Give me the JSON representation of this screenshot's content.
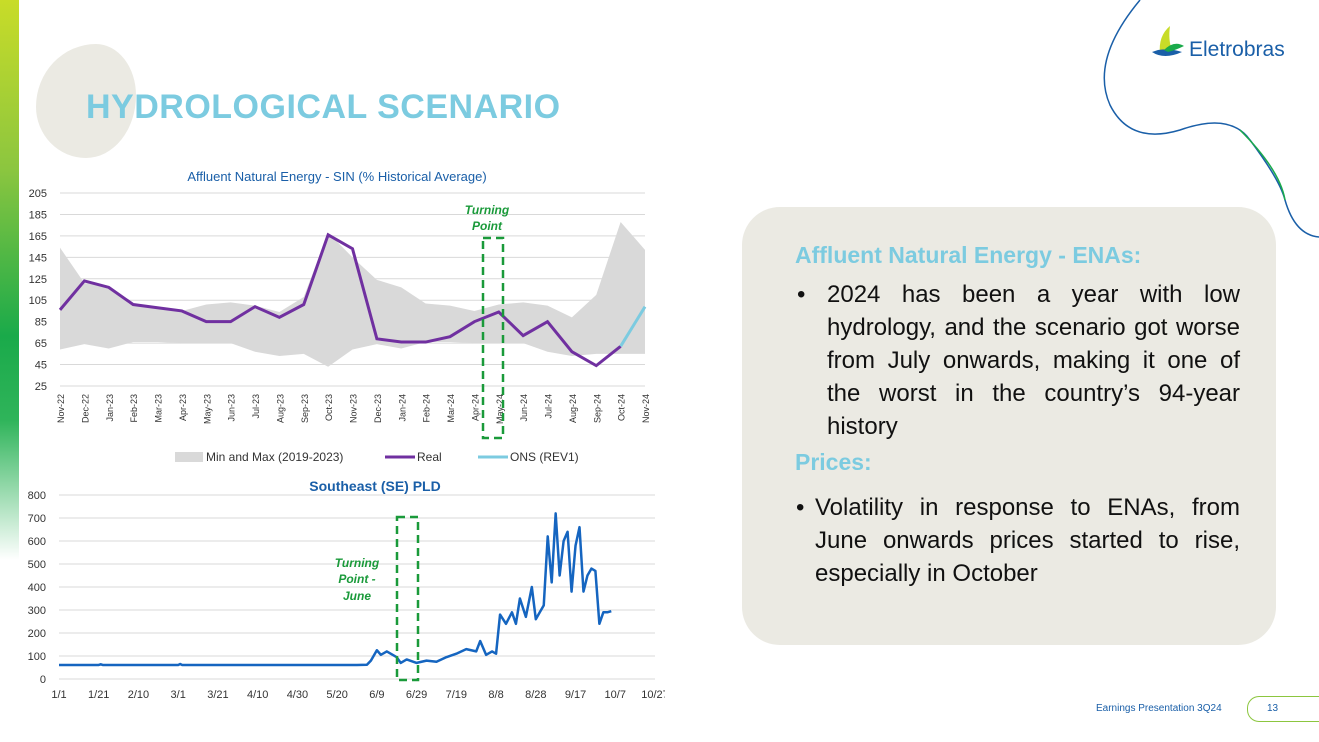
{
  "slide": {
    "title": "HYDROLOGICAL SCENARIO",
    "logo_text": "Eletrobras",
    "footer": "Earnings Presentation 3Q24",
    "page_number": "13",
    "colors": {
      "accent": "#7ccbe0",
      "brand_blue": "#1a5fa8",
      "green": "#8cc63f",
      "panel": "#ebeae3"
    }
  },
  "panel": {
    "heading_ena_a": "Affluent Natural Energy - ",
    "heading_ena_b": "ENAs:",
    "bullet_1": "2024 has been a year with low hydrology, and the scenario got worse from July onwards, making it one of the worst in the country’s 94-year history",
    "heading_prices": "Prices:",
    "bullet_2": "Volatility in response to ENAs, from June onwards prices started to rise, especially in October"
  },
  "chart_data": [
    {
      "type": "line",
      "title": "Affluent Natural Energy - SIN (% Historical Average)",
      "categories": [
        "Nov-22",
        "Dec-22",
        "Jan-23",
        "Feb-23",
        "Mar-23",
        "Apr-23",
        "May-23",
        "Jun-23",
        "Jul-23",
        "Aug-23",
        "Sep-23",
        "Oct-23",
        "Nov-23",
        "Dec-23",
        "Jan-24",
        "Feb-24",
        "Mar-24",
        "Apr-24",
        "May-24",
        "Jun-24",
        "Jul-24",
        "Aug-24",
        "Sep-24",
        "Oct-24",
        "Nov-24"
      ],
      "yticks": [
        "205",
        "185",
        "165",
        "145",
        "125",
        "105",
        "85",
        "65",
        "45",
        "25"
      ],
      "ylim": [
        25,
        205
      ],
      "series": [
        {
          "name": "Real",
          "color": "#7030a0",
          "values": [
            96,
            123,
            117,
            101,
            98,
            95,
            85,
            85,
            99,
            89,
            101,
            166,
            153,
            69,
            66,
            66,
            71,
            85,
            94,
            72,
            85,
            57,
            44,
            62,
            null
          ]
        },
        {
          "name": "ONS (REV1)",
          "color": "#7ccbe0",
          "values": [
            null,
            null,
            null,
            null,
            null,
            null,
            null,
            null,
            null,
            null,
            null,
            null,
            null,
            null,
            null,
            null,
            null,
            null,
            null,
            null,
            null,
            null,
            null,
            62,
            99
          ]
        }
      ],
      "band": {
        "name": "Min and Max (2019-2023)",
        "color": "#d9d9d9",
        "min": [
          59,
          64,
          60,
          66,
          66,
          65,
          65,
          65,
          57,
          53,
          55,
          43,
          59,
          64,
          60,
          66,
          66,
          65,
          65,
          65,
          57,
          53,
          55,
          55,
          55
        ],
        "max": [
          154,
          121,
          118,
          102,
          98,
          95,
          101,
          103,
          100,
          94,
          108,
          168,
          145,
          124,
          117,
          102,
          100,
          95,
          101,
          103,
          100,
          89,
          110,
          178,
          152
        ]
      },
      "annotation": {
        "text_1": "Turning",
        "text_2": "Point",
        "at": "May-24"
      }
    },
    {
      "type": "line",
      "title": "Southeast (SE) PLD",
      "xticks": [
        "1/1",
        "1/21",
        "2/10",
        "3/1",
        "3/21",
        "4/10",
        "4/30",
        "5/20",
        "6/9",
        "6/29",
        "7/19",
        "8/8",
        "8/28",
        "9/17",
        "10/7",
        "10/27"
      ],
      "yticks": [
        "800",
        "700",
        "600",
        "500",
        "400",
        "300",
        "200",
        "100",
        "0"
      ],
      "ylim": [
        0,
        800
      ],
      "series": [
        {
          "name": "PLD SE",
          "color": "#1565c0",
          "x": [
            0,
            20,
            21,
            22,
            60,
            61,
            62,
            150,
            155,
            157,
            160,
            162,
            165,
            170,
            172,
            175,
            180,
            185,
            190,
            195,
            200,
            205,
            210,
            212,
            215,
            218,
            220,
            222,
            225,
            228,
            230,
            232,
            235,
            238,
            240,
            242,
            244,
            246,
            248,
            250,
            252,
            254,
            256,
            258,
            260,
            262,
            264,
            266,
            268,
            270,
            272,
            274,
            276,
            278,
            280,
            282,
            284,
            286,
            288,
            290,
            292,
            295,
            298,
            300
          ],
          "values": [
            61,
            61,
            64,
            61,
            61,
            65,
            61,
            61,
            62,
            80,
            125,
            105,
            120,
            95,
            70,
            85,
            70,
            80,
            75,
            95,
            110,
            130,
            120,
            165,
            105,
            120,
            110,
            280,
            240,
            290,
            240,
            350,
            270,
            400,
            260,
            290,
            320,
            620,
            420,
            720,
            450,
            600,
            640,
            380,
            580,
            660,
            380,
            450,
            480,
            470,
            240,
            290,
            290,
            295,
            null,
            null,
            null,
            null,
            null,
            null,
            null,
            null,
            null,
            null
          ]
        }
      ],
      "annotation": {
        "text_1": "Turning",
        "text_2": "Point -",
        "text_3": "June",
        "at": "6/29"
      }
    }
  ],
  "legend": {
    "band": "Min and Max (2019-2023)",
    "real": "Real",
    "ons": "ONS (REV1)"
  }
}
